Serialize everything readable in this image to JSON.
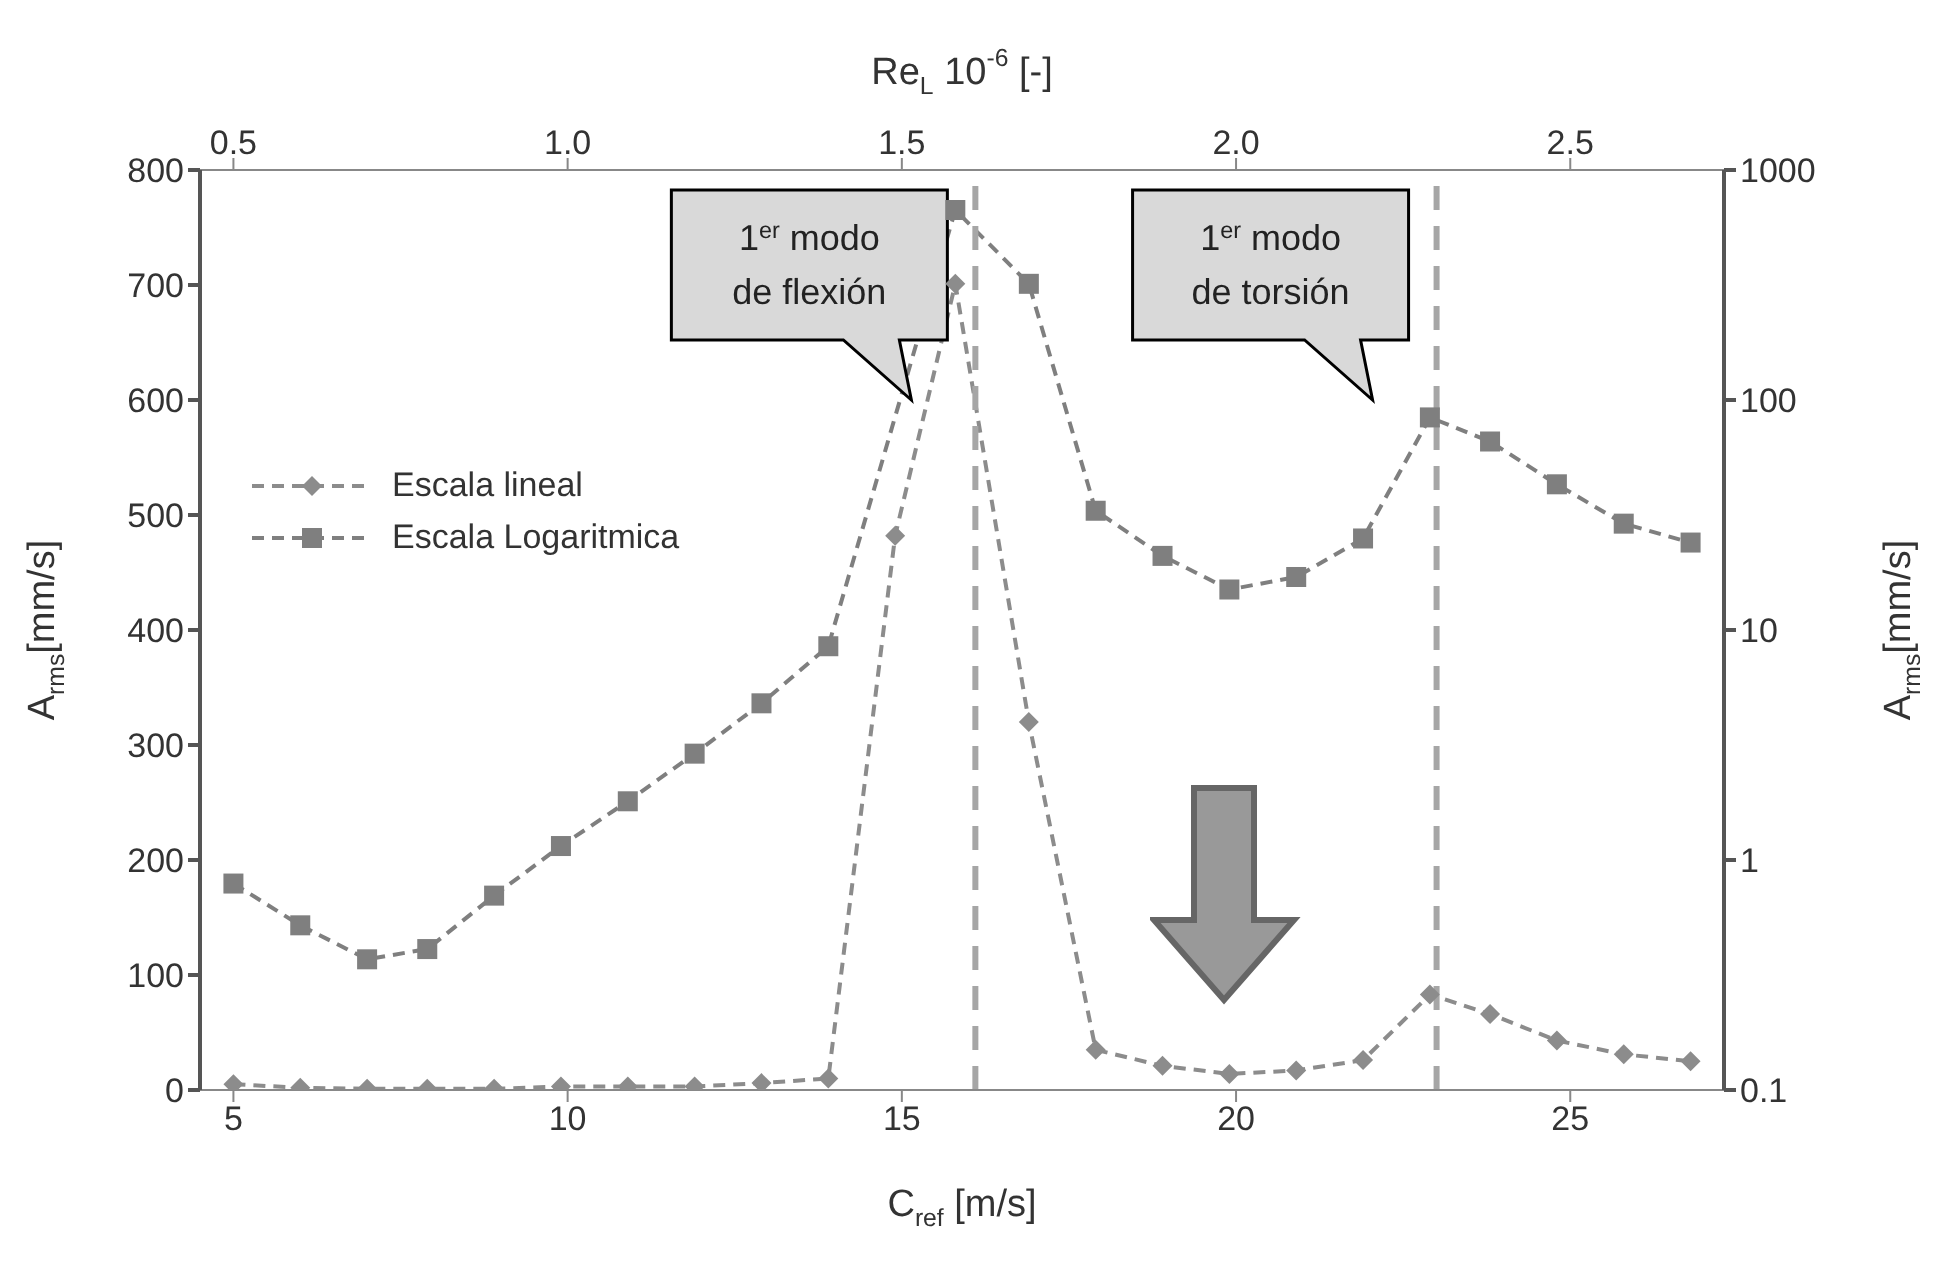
{
  "chart_data": {
    "type": "line",
    "xlabel": "C$_{ref}$ [m/s]",
    "x2label": "Re$_{L}$ 10$^{-6}$ [-]",
    "ylabel": "A$_{rms}$[mm/s]",
    "y2label": "A$_{rms}$[mm/s]",
    "x": [
      5.0,
      6.0,
      7.0,
      7.9,
      8.9,
      9.9,
      10.9,
      11.9,
      12.9,
      13.9,
      14.9,
      15.8,
      16.9,
      17.9,
      18.9,
      19.9,
      20.9,
      21.9,
      22.9,
      23.8,
      24.8,
      25.8,
      26.8
    ],
    "series": [
      {
        "name": "Escala lineal",
        "color": "#8c8c8c",
        "marker": "diamond",
        "values": [
          5,
          2,
          1,
          1,
          1,
          3,
          3,
          3,
          6,
          10,
          482,
          701,
          320,
          35,
          21,
          14,
          17,
          26,
          83,
          66,
          43,
          31,
          25
        ]
      },
      {
        "name": "Escala Logaritmica",
        "color": "#7f7f7f",
        "marker": "square",
        "axis": "y2",
        "values": [
          0.79,
          0.52,
          0.37,
          0.41,
          0.7,
          1.15,
          1.8,
          2.9,
          4.8,
          8.5,
          null,
          670,
          320,
          33,
          21,
          15,
          17,
          25,
          84,
          66,
          43,
          29,
          24
        ]
      }
    ],
    "xlim": [
      4.5,
      27.3
    ],
    "xticks": [
      5,
      10,
      15,
      20,
      25
    ],
    "x2lim": [
      0.45,
      2.73
    ],
    "x2ticks": [
      0.5,
      {
        "value": 1,
        "label": "1.0"
      },
      1.5,
      {
        "value": 2,
        "label": "2.0"
      },
      2.5
    ],
    "ylim": [
      0,
      800
    ],
    "yticks": [
      0,
      100,
      200,
      300,
      400,
      500,
      600,
      700,
      800
    ],
    "y2lim": [
      0.1,
      1000
    ],
    "y2ticks": [
      0.1,
      1,
      10,
      100,
      1000
    ],
    "log": "y2",
    "line_style": "dashed",
    "grid": false,
    "legend": "left",
    "ref_lines": [
      {
        "axis": "x",
        "value": 16.1,
        "label": "1$^{er}$ modo de flexión",
        "color": "#a6a6a6",
        "line_style": "dashed"
      },
      {
        "axis": "x",
        "value": 23.0,
        "label": "1$^{er}$ modo de torsión",
        "color": "#a6a6a6",
        "line_style": "dashed"
      }
    ]
  }
}
